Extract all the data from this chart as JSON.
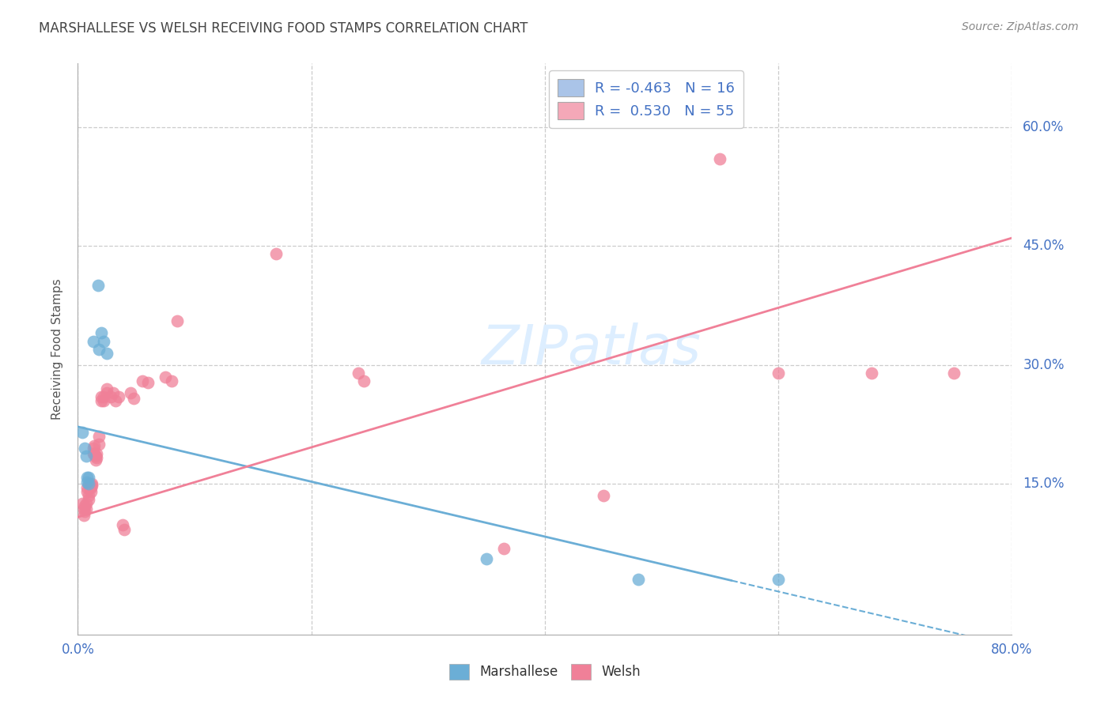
{
  "title": "MARSHALLESE VS WELSH RECEIVING FOOD STAMPS CORRELATION CHART",
  "source": "Source: ZipAtlas.com",
  "ylabel": "Receiving Food Stamps",
  "ytick_labels": [
    "15.0%",
    "30.0%",
    "45.0%",
    "60.0%"
  ],
  "ytick_values": [
    0.15,
    0.3,
    0.45,
    0.6
  ],
  "xlim": [
    0.0,
    0.8
  ],
  "ylim": [
    -0.04,
    0.68
  ],
  "legend_entries": [
    {
      "label_r": "R = ",
      "label_val": "-0.463",
      "label_n": "  N = ",
      "label_nval": "16",
      "color": "#aac4e8"
    },
    {
      "label_r": "R = ",
      "label_val": " 0.530",
      "label_n": "  N = ",
      "label_nval": "55",
      "color": "#f4a8b8"
    }
  ],
  "watermark": "ZIPatlas",
  "marshallese_color": "#6baed6",
  "welsh_color": "#f08098",
  "marshallese_scatter": [
    [
      0.004,
      0.215
    ],
    [
      0.006,
      0.195
    ],
    [
      0.007,
      0.185
    ],
    [
      0.008,
      0.158
    ],
    [
      0.008,
      0.152
    ],
    [
      0.009,
      0.158
    ],
    [
      0.009,
      0.15
    ],
    [
      0.013,
      0.33
    ],
    [
      0.017,
      0.4
    ],
    [
      0.018,
      0.32
    ],
    [
      0.02,
      0.34
    ],
    [
      0.022,
      0.33
    ],
    [
      0.025,
      0.315
    ],
    [
      0.35,
      0.055
    ],
    [
      0.48,
      0.03
    ],
    [
      0.6,
      0.03
    ]
  ],
  "welsh_scatter": [
    [
      0.004,
      0.125
    ],
    [
      0.005,
      0.118
    ],
    [
      0.005,
      0.11
    ],
    [
      0.006,
      0.122
    ],
    [
      0.006,
      0.115
    ],
    [
      0.007,
      0.125
    ],
    [
      0.007,
      0.118
    ],
    [
      0.008,
      0.145
    ],
    [
      0.008,
      0.14
    ],
    [
      0.009,
      0.135
    ],
    [
      0.009,
      0.13
    ],
    [
      0.01,
      0.15
    ],
    [
      0.01,
      0.145
    ],
    [
      0.011,
      0.145
    ],
    [
      0.011,
      0.14
    ],
    [
      0.012,
      0.15
    ],
    [
      0.012,
      0.148
    ],
    [
      0.013,
      0.195
    ],
    [
      0.013,
      0.188
    ],
    [
      0.014,
      0.198
    ],
    [
      0.014,
      0.188
    ],
    [
      0.015,
      0.18
    ],
    [
      0.015,
      0.185
    ],
    [
      0.016,
      0.188
    ],
    [
      0.016,
      0.183
    ],
    [
      0.018,
      0.21
    ],
    [
      0.018,
      0.2
    ],
    [
      0.02,
      0.26
    ],
    [
      0.02,
      0.255
    ],
    [
      0.022,
      0.26
    ],
    [
      0.022,
      0.255
    ],
    [
      0.025,
      0.27
    ],
    [
      0.025,
      0.265
    ],
    [
      0.028,
      0.26
    ],
    [
      0.03,
      0.265
    ],
    [
      0.032,
      0.255
    ],
    [
      0.035,
      0.26
    ],
    [
      0.038,
      0.098
    ],
    [
      0.04,
      0.092
    ],
    [
      0.045,
      0.265
    ],
    [
      0.048,
      0.258
    ],
    [
      0.055,
      0.28
    ],
    [
      0.06,
      0.278
    ],
    [
      0.075,
      0.285
    ],
    [
      0.08,
      0.28
    ],
    [
      0.085,
      0.355
    ],
    [
      0.17,
      0.44
    ],
    [
      0.24,
      0.29
    ],
    [
      0.245,
      0.28
    ],
    [
      0.365,
      0.068
    ],
    [
      0.45,
      0.135
    ],
    [
      0.55,
      0.56
    ],
    [
      0.6,
      0.29
    ],
    [
      0.68,
      0.29
    ],
    [
      0.75,
      0.29
    ]
  ],
  "marshallese_line_solid": {
    "x": [
      0.0,
      0.56
    ],
    "y": [
      0.222,
      0.028
    ]
  },
  "marshallese_line_dashed": {
    "x": [
      0.56,
      0.8
    ],
    "y": [
      0.028,
      -0.055
    ]
  },
  "welsh_line": {
    "x": [
      0.0,
      0.8
    ],
    "y": [
      0.108,
      0.46
    ]
  },
  "background_color": "#ffffff",
  "grid_color": "#cccccc",
  "title_color": "#444444",
  "axis_label_color": "#4472c4",
  "watermark_color": "#ddeeff"
}
